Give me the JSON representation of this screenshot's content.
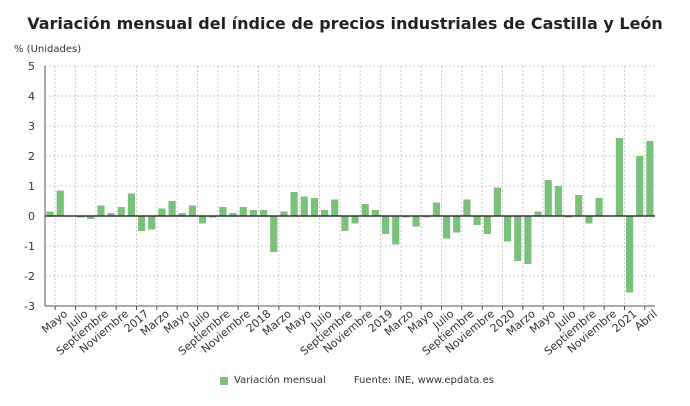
{
  "chart_data": {
    "type": "bar",
    "title": "Variación mensual del índice de precios industriales de Castilla y León",
    "ylabel": "% (Unidades)",
    "ylim": [
      -3,
      5
    ],
    "yticks": [
      -3,
      -2,
      -1,
      0,
      1,
      2,
      3,
      4,
      5
    ],
    "grid": true,
    "legend_position": "bottom",
    "bar_color": "#7bc07b",
    "tick_labels": [
      "Mayo",
      "Julio",
      "Septiembre",
      "Noviembre",
      "2017",
      "Marzo",
      "Mayo",
      "Julio",
      "Septiembre",
      "Noviembre",
      "2018",
      "Marzo",
      "Mayo",
      "Julio",
      "Septiembre",
      "Noviembre",
      "2019",
      "Marzo",
      "Mayo",
      "Julio",
      "Septiembre",
      "Noviembre",
      "2020",
      "Marzo",
      "Mayo",
      "Julio",
      "Septiembre",
      "Noviembre",
      "2021",
      "Abril"
    ],
    "series": [
      {
        "name": "Variación mensual",
        "values": [
          0.15,
          0.85,
          0,
          -0.05,
          -0.1,
          0.35,
          0.1,
          0.3,
          0.75,
          -0.5,
          -0.45,
          0.25,
          0.5,
          0.1,
          0.35,
          -0.25,
          -0.05,
          0.3,
          0.1,
          0.3,
          0.2,
          0.2,
          -1.2,
          0.15,
          0.8,
          0.65,
          0.6,
          0.2,
          0.55,
          -0.5,
          -0.25,
          0.4,
          0.2,
          -0.6,
          -0.95,
          -0.05,
          -0.35,
          -0.05,
          0.45,
          -0.75,
          -0.55,
          0.55,
          -0.3,
          -0.6,
          0.95,
          -0.85,
          -1.5,
          -1.6,
          0.15,
          1.2,
          1.0,
          -0.05,
          0.7,
          -0.25,
          0.6,
          0,
          2.6,
          -2.55,
          2.0,
          2.5
        ]
      }
    ],
    "source": "Fuente: INE, www.epdata.es"
  }
}
